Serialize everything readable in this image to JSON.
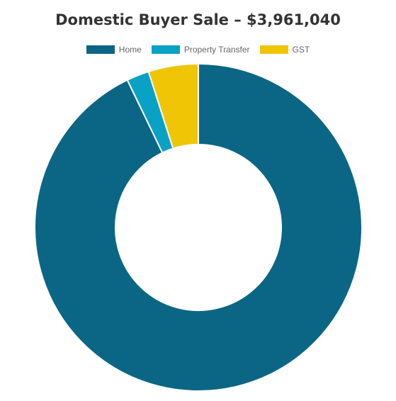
{
  "chart_data": {
    "type": "pie",
    "title": "Domestic Buyer Sale – $3,961,040",
    "legend_position": "top",
    "categories": [
      "Home",
      "Property Transfer",
      "GST"
    ],
    "values": [
      3678000,
      87840,
      195200
    ],
    "colors": [
      "#0b6685",
      "#0aa2c4",
      "#f0c506"
    ]
  }
}
